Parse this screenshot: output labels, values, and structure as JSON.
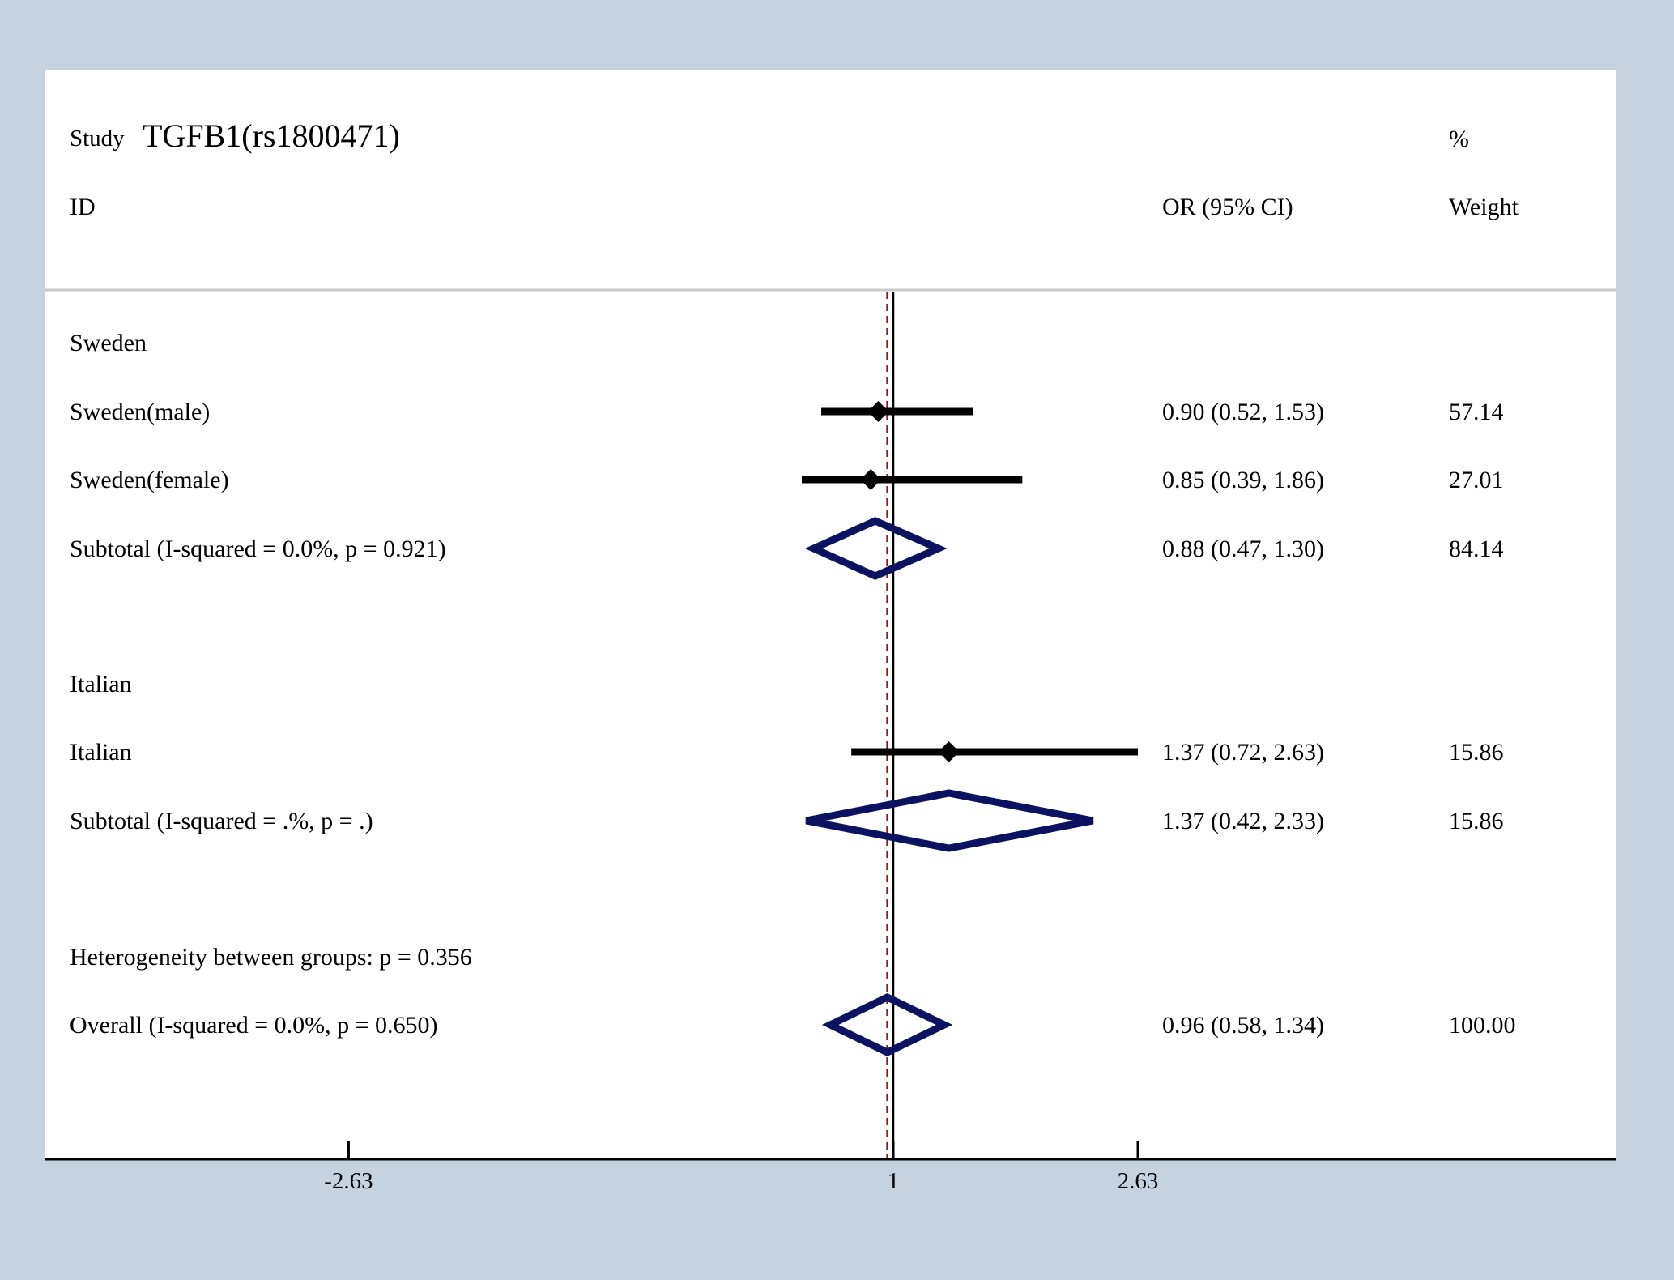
{
  "header": {
    "study_small": "Study",
    "study_title": "TGFB1(rs1800471)",
    "id_label": "ID",
    "or_label": "OR (95% CI)",
    "pct_label": "%",
    "weight_label": "Weight"
  },
  "chart_data": {
    "type": "forest",
    "x_ticks": [
      "-2.63",
      "1",
      "2.63"
    ],
    "null_line": 1,
    "overall_es": 0.96,
    "rows": [
      {
        "kind": "group",
        "label": "Sweden"
      },
      {
        "kind": "study",
        "label": "Sweden(male)",
        "es": 0.9,
        "lo": 0.52,
        "hi": 1.53,
        "ci_text": "0.90 (0.52, 1.53)",
        "weight": "57.14"
      },
      {
        "kind": "study",
        "label": "Sweden(female)",
        "es": 0.85,
        "lo": 0.39,
        "hi": 1.86,
        "ci_text": "0.85 (0.39, 1.86)",
        "weight": "27.01"
      },
      {
        "kind": "subtotal",
        "label": "Subtotal  (I-squared = 0.0%, p = 0.921)",
        "es": 0.88,
        "lo": 0.47,
        "hi": 1.3,
        "ci_text": "0.88 (0.47, 1.30)",
        "weight": "84.14"
      },
      {
        "kind": "group",
        "label": "Italian"
      },
      {
        "kind": "study",
        "label": "Italian",
        "es": 1.37,
        "lo": 0.72,
        "hi": 2.63,
        "ci_text": "1.37 (0.72, 2.63)",
        "weight": "15.86"
      },
      {
        "kind": "subtotal",
        "label": "Subtotal  (I-squared = .%, p = .)",
        "es": 1.37,
        "lo": 0.42,
        "hi": 2.33,
        "ci_text": "1.37 (0.42, 2.33)",
        "weight": "15.86"
      },
      {
        "kind": "text",
        "label": "Heterogeneity between groups: p = 0.356"
      },
      {
        "kind": "overall",
        "label": "Overall  (I-squared = 0.0%, p = 0.650)",
        "es": 0.96,
        "lo": 0.58,
        "hi": 1.34,
        "ci_text": "0.96 (0.58, 1.34)",
        "weight": "100.00"
      }
    ]
  },
  "colors": {
    "background": "#c5d3e0",
    "panel": "#ffffff",
    "diamond": "#0c1260",
    "ci_line": "#000000",
    "overall_line": "#8b1a1a"
  }
}
